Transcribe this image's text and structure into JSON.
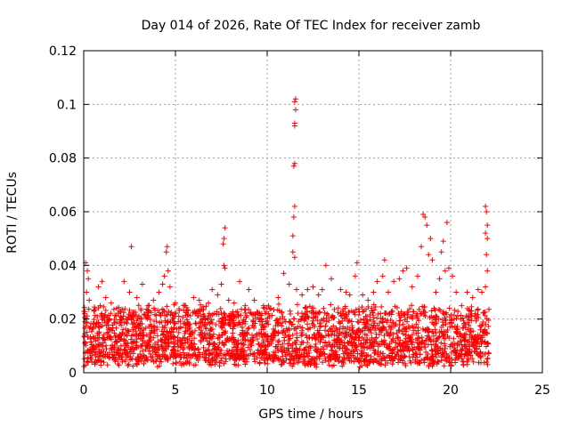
{
  "chart_data": {
    "type": "scatter",
    "title": "Day 014 of 2026, Rate Of TEC Index for receiver zamb",
    "xlabel": "GPS time / hours",
    "ylabel": "ROTI / TECUs",
    "xlim": [
      0,
      25
    ],
    "ylim": [
      0,
      0.12
    ],
    "xticks": [
      0,
      5,
      10,
      15,
      20,
      25
    ],
    "xtick_labels": [
      "0",
      "5",
      "10",
      "15",
      "20",
      "25"
    ],
    "yticks": [
      0,
      0.02,
      0.04,
      0.06,
      0.08,
      0.1,
      0.12
    ],
    "ytick_labels": [
      "0",
      "0.02",
      "0.04",
      "0.06",
      "0.08",
      "0.1",
      "0.12"
    ],
    "grid": true,
    "marker": "+",
    "color": "#ff0000",
    "series": [
      {
        "name": "ROTI",
        "points": [
          [
            0.1,
            0.041
          ],
          [
            0.2,
            0.038
          ],
          [
            0.15,
            0.03
          ],
          [
            0.3,
            0.027
          ],
          [
            0.05,
            0.022
          ],
          [
            0.25,
            0.035
          ],
          [
            0.8,
            0.032
          ],
          [
            1.0,
            0.034
          ],
          [
            1.2,
            0.028
          ],
          [
            0.9,
            0.025
          ],
          [
            1.5,
            0.026
          ],
          [
            1.8,
            0.024
          ],
          [
            2.2,
            0.034
          ],
          [
            2.5,
            0.03
          ],
          [
            2.6,
            0.047
          ],
          [
            2.9,
            0.028
          ],
          [
            3.2,
            0.033
          ],
          [
            3.5,
            0.025
          ],
          [
            3.8,
            0.027
          ],
          [
            4.1,
            0.03
          ],
          [
            4.3,
            0.033
          ],
          [
            4.4,
            0.036
          ],
          [
            4.5,
            0.045
          ],
          [
            4.55,
            0.047
          ],
          [
            4.6,
            0.038
          ],
          [
            4.7,
            0.032
          ],
          [
            5.0,
            0.026
          ],
          [
            5.5,
            0.025
          ],
          [
            6.0,
            0.028
          ],
          [
            6.3,
            0.027
          ],
          [
            6.8,
            0.026
          ],
          [
            7.0,
            0.031
          ],
          [
            7.3,
            0.029
          ],
          [
            7.5,
            0.033
          ],
          [
            7.6,
            0.048
          ],
          [
            7.65,
            0.05
          ],
          [
            7.7,
            0.054
          ],
          [
            7.65,
            0.04
          ],
          [
            7.7,
            0.039
          ],
          [
            7.9,
            0.027
          ],
          [
            8.2,
            0.026
          ],
          [
            8.5,
            0.034
          ],
          [
            8.8,
            0.025
          ],
          [
            9.0,
            0.031
          ],
          [
            9.3,
            0.027
          ],
          [
            9.8,
            0.025
          ],
          [
            10.2,
            0.024
          ],
          [
            10.6,
            0.028
          ],
          [
            10.9,
            0.037
          ],
          [
            11.2,
            0.033
          ],
          [
            11.4,
            0.045
          ],
          [
            11.45,
            0.058
          ],
          [
            11.5,
            0.062
          ],
          [
            11.45,
            0.077
          ],
          [
            11.5,
            0.078
          ],
          [
            11.5,
            0.092
          ],
          [
            11.5,
            0.093
          ],
          [
            11.55,
            0.098
          ],
          [
            11.5,
            0.101
          ],
          [
            11.55,
            0.102
          ],
          [
            11.4,
            0.051
          ],
          [
            11.5,
            0.043
          ],
          [
            11.6,
            0.031
          ],
          [
            11.9,
            0.029
          ],
          [
            12.2,
            0.031
          ],
          [
            12.5,
            0.032
          ],
          [
            12.8,
            0.029
          ],
          [
            13.0,
            0.031
          ],
          [
            13.2,
            0.04
          ],
          [
            13.5,
            0.035
          ],
          [
            14.0,
            0.031
          ],
          [
            14.3,
            0.03
          ],
          [
            14.5,
            0.029
          ],
          [
            14.8,
            0.036
          ],
          [
            14.9,
            0.041
          ],
          [
            15.2,
            0.029
          ],
          [
            15.5,
            0.027
          ],
          [
            15.8,
            0.03
          ],
          [
            16.0,
            0.034
          ],
          [
            16.3,
            0.036
          ],
          [
            16.4,
            0.042
          ],
          [
            16.6,
            0.03
          ],
          [
            16.9,
            0.034
          ],
          [
            17.2,
            0.035
          ],
          [
            17.4,
            0.038
          ],
          [
            17.6,
            0.039
          ],
          [
            17.9,
            0.032
          ],
          [
            18.2,
            0.036
          ],
          [
            18.4,
            0.047
          ],
          [
            18.5,
            0.059
          ],
          [
            18.6,
            0.058
          ],
          [
            18.7,
            0.055
          ],
          [
            18.8,
            0.044
          ],
          [
            18.9,
            0.05
          ],
          [
            19.0,
            0.042
          ],
          [
            19.2,
            0.03
          ],
          [
            19.4,
            0.035
          ],
          [
            19.5,
            0.045
          ],
          [
            19.6,
            0.049
          ],
          [
            19.7,
            0.038
          ],
          [
            19.8,
            0.056
          ],
          [
            19.9,
            0.039
          ],
          [
            20.1,
            0.036
          ],
          [
            20.3,
            0.03
          ],
          [
            20.6,
            0.025
          ],
          [
            20.9,
            0.03
          ],
          [
            21.2,
            0.028
          ],
          [
            21.5,
            0.031
          ],
          [
            21.7,
            0.03
          ],
          [
            21.9,
            0.062
          ],
          [
            21.95,
            0.06
          ],
          [
            22.0,
            0.055
          ],
          [
            21.9,
            0.052
          ],
          [
            22.0,
            0.05
          ],
          [
            21.95,
            0.044
          ],
          [
            22.0,
            0.038
          ],
          [
            21.9,
            0.032
          ]
        ],
        "dense_band": {
          "note": "dense cloud of ROTI values between 0.002 and ~0.025 TECU/s from 0 to 22 h",
          "x_range": [
            0,
            22.1
          ],
          "y_floor": 0.002,
          "y_typical_max": 0.022
        }
      }
    ]
  }
}
